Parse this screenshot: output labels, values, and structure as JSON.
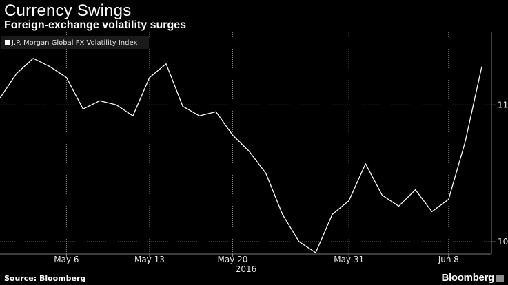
{
  "header": {
    "title": "Currency Swings",
    "subtitle": "Foreign-exchange volatility surges"
  },
  "footer": {
    "source": "Source: Bloomberg",
    "brand": "Bloomberg"
  },
  "chart_data": {
    "type": "line",
    "title": "Currency Swings",
    "subtitle": "Foreign-exchange volatility surges",
    "xlabel": "2016",
    "ylabel": "",
    "legend": {
      "position": "top-left",
      "entries": [
        "J.P. Morgan Global FX Volatility Index"
      ]
    },
    "grid": true,
    "x_ticks": [
      {
        "label": "May 6",
        "index": 4
      },
      {
        "label": "May 13",
        "index": 9
      },
      {
        "label": "May 20",
        "index": 14
      },
      {
        "label": "May 31",
        "index": 21
      },
      {
        "label": "Jun 8",
        "index": 27
      }
    ],
    "y_ticks": [
      10,
      11
    ],
    "ylim": [
      9.91,
      11.53
    ],
    "series": [
      {
        "name": "J.P. Morgan Global FX Volatility Index",
        "color": "#ffffff",
        "x": [
          "May 2",
          "May 3",
          "May 4",
          "May 5",
          "May 6",
          "May 9",
          "May 10",
          "May 11",
          "May 12",
          "May 13",
          "May 16",
          "May 17",
          "May 18",
          "May 19",
          "May 20",
          "May 23",
          "May 24",
          "May 25",
          "May 26",
          "May 27",
          "May 30",
          "May 31",
          "Jun 1",
          "Jun 2",
          "Jun 3",
          "Jun 6",
          "Jun 7",
          "Jun 8",
          "Jun 9",
          "Jun 10"
        ],
        "values": [
          11.05,
          11.23,
          11.34,
          11.28,
          11.2,
          10.97,
          11.03,
          11.0,
          10.92,
          11.2,
          11.3,
          10.99,
          10.92,
          10.95,
          10.78,
          10.66,
          10.5,
          10.2,
          10.0,
          9.92,
          10.2,
          10.3,
          10.57,
          10.34,
          10.26,
          10.38,
          10.22,
          10.31,
          10.73,
          11.28
        ]
      }
    ]
  }
}
